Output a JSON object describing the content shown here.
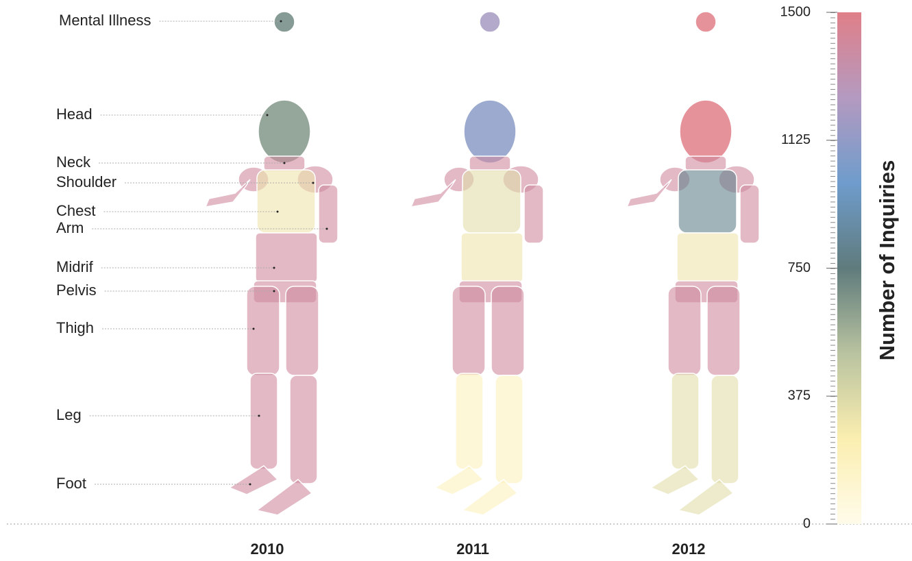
{
  "chart_data": {
    "type": "body-map",
    "categories": [
      "Mental Illness",
      "Head",
      "Neck",
      "Shoulder",
      "Chest",
      "Arm",
      "Midrif",
      "Pelvis",
      "Thigh",
      "Leg",
      "Foot"
    ],
    "series": [
      {
        "name": "2010",
        "values": [
          700,
          650,
          1400,
          1400,
          300,
          1400,
          1400,
          1400,
          1400,
          1400,
          1400
        ]
      },
      {
        "name": "2011",
        "values": [
          1200,
          1100,
          1400,
          1400,
          350,
          1400,
          300,
          1400,
          1400,
          200,
          200
        ]
      },
      {
        "name": "2012",
        "values": [
          1500,
          1500,
          1400,
          1400,
          800,
          1400,
          300,
          1400,
          1400,
          350,
          350
        ]
      }
    ],
    "colorscale": [
      "#fffbea",
      "#fbeeb0",
      "#b9c3a0",
      "#5f7b7c",
      "#6f9ccc",
      "#b49ac0",
      "#e07f88"
    ],
    "ylim": [
      0,
      1500
    ],
    "yticks": [
      0,
      375,
      750,
      1125,
      1500
    ],
    "ylabel": "Number of Inquiries"
  }
}
